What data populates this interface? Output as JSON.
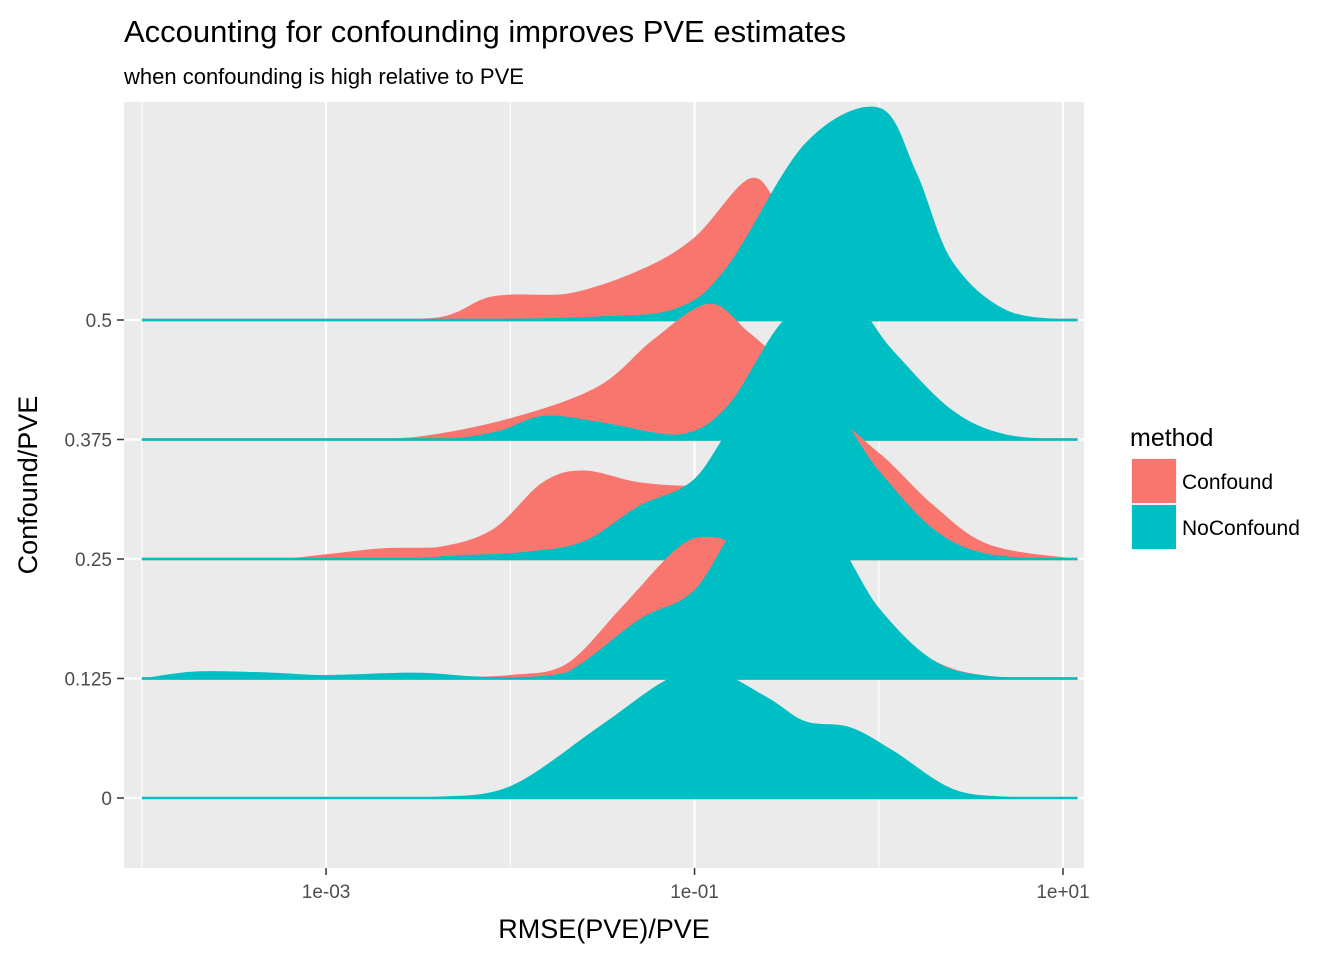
{
  "chart_data": {
    "type": "ridgeline",
    "title": "Accounting for confounding improves PVE estimates",
    "subtitle": "when confounding is high relative to PVE",
    "xlabel": "RMSE(PVE)/PVE",
    "ylabel": "Confound/PVE",
    "x_scale": "log10",
    "xlim": [
      8e-05,
      13
    ],
    "x_ticks": [
      {
        "value": 0.001,
        "label": "1e-03"
      },
      {
        "value": 0.1,
        "label": "1e-01"
      },
      {
        "value": 10,
        "label": "1e+01"
      }
    ],
    "y_ticks": [
      "0",
      "0.125",
      "0.25",
      "0.375",
      "0.5"
    ],
    "grid": true,
    "legend": {
      "title": "method",
      "position": "right",
      "entries": [
        {
          "name": "Confound",
          "color": "#F8766D"
        },
        {
          "name": "NoConfound",
          "color": "#00BFC4"
        }
      ]
    },
    "series": [
      {
        "name": "Confound",
        "color": "#F8766D",
        "ridges": [
          {
            "group": "0.125",
            "points": [
              [
                0.0001,
                0
              ],
              [
                0.0003,
                0
              ],
              [
                0.001,
                0.01
              ],
              [
                0.004,
                0.01
              ],
              [
                0.01,
                0.03
              ],
              [
                0.02,
                0.12
              ],
              [
                0.04,
                0.6
              ],
              [
                0.08,
                1.1
              ],
              [
                0.12,
                1.2
              ],
              [
                0.2,
                1.1
              ],
              [
                0.5,
                0.9
              ],
              [
                1,
                0.5
              ],
              [
                2,
                0.15
              ],
              [
                4,
                0.02
              ],
              [
                12,
                0
              ]
            ]
          },
          {
            "group": "0.25",
            "points": [
              [
                0.0001,
                0
              ],
              [
                0.0005,
                0
              ],
              [
                0.001,
                0.04
              ],
              [
                0.002,
                0.09
              ],
              [
                0.004,
                0.1
              ],
              [
                0.008,
                0.25
              ],
              [
                0.015,
                0.65
              ],
              [
                0.025,
                0.75
              ],
              [
                0.05,
                0.65
              ],
              [
                0.1,
                0.62
              ],
              [
                0.2,
                0.95
              ],
              [
                0.5,
                1.2
              ],
              [
                1,
                0.9
              ],
              [
                2,
                0.45
              ],
              [
                4,
                0.12
              ],
              [
                12,
                0
              ]
            ]
          },
          {
            "group": "0.375",
            "points": [
              [
                0.0001,
                0
              ],
              [
                0.001,
                0
              ],
              [
                0.003,
                0.02
              ],
              [
                0.01,
                0.18
              ],
              [
                0.03,
                0.45
              ],
              [
                0.06,
                0.85
              ],
              [
                0.12,
                1.15
              ],
              [
                0.2,
                0.9
              ],
              [
                0.4,
                0.5
              ],
              [
                0.8,
                0.25
              ],
              [
                1.5,
                0.1
              ],
              [
                4,
                0.02
              ],
              [
                12,
                0
              ]
            ]
          },
          {
            "group": "0.5",
            "points": [
              [
                0.0001,
                0
              ],
              [
                0.001,
                0
              ],
              [
                0.004,
                0.02
              ],
              [
                0.008,
                0.2
              ],
              [
                0.02,
                0.22
              ],
              [
                0.05,
                0.42
              ],
              [
                0.1,
                0.7
              ],
              [
                0.2,
                1.2
              ],
              [
                0.3,
                0.95
              ],
              [
                0.6,
                0.55
              ],
              [
                1,
                0.28
              ],
              [
                2,
                0.08
              ],
              [
                5,
                0.01
              ],
              [
                12,
                0
              ]
            ]
          }
        ]
      },
      {
        "name": "NoConfound",
        "color": "#00BFC4",
        "ridges": [
          {
            "group": "0",
            "points": [
              [
                0.0001,
                0
              ],
              [
                0.001,
                0
              ],
              [
                0.004,
                0.01
              ],
              [
                0.01,
                0.1
              ],
              [
                0.03,
                0.6
              ],
              [
                0.07,
                1.0
              ],
              [
                0.12,
                1.1
              ],
              [
                0.25,
                0.85
              ],
              [
                0.4,
                0.65
              ],
              [
                0.7,
                0.6
              ],
              [
                1.2,
                0.4
              ],
              [
                2.5,
                0.08
              ],
              [
                5,
                0.01
              ],
              [
                12,
                0
              ]
            ]
          },
          {
            "group": "0.125",
            "points": [
              [
                0.0001,
                0
              ],
              [
                0.0002,
                0.06
              ],
              [
                0.0005,
                0.05
              ],
              [
                0.001,
                0.03
              ],
              [
                0.003,
                0.05
              ],
              [
                0.006,
                0.02
              ],
              [
                0.01,
                0.01
              ],
              [
                0.02,
                0.05
              ],
              [
                0.05,
                0.5
              ],
              [
                0.1,
                0.75
              ],
              [
                0.2,
                1.4
              ],
              [
                0.5,
                1.3
              ],
              [
                1,
                0.6
              ],
              [
                2,
                0.15
              ],
              [
                4,
                0.02
              ],
              [
                12,
                0
              ]
            ]
          },
          {
            "group": "0.25",
            "points": [
              [
                0.0001,
                0
              ],
              [
                0.002,
                0
              ],
              [
                0.005,
                0.03
              ],
              [
                0.012,
                0.06
              ],
              [
                0.025,
                0.15
              ],
              [
                0.05,
                0.45
              ],
              [
                0.1,
                0.68
              ],
              [
                0.2,
                1.3
              ],
              [
                0.5,
                1.35
              ],
              [
                1,
                0.75
              ],
              [
                2,
                0.25
              ],
              [
                4,
                0.04
              ],
              [
                12,
                0
              ]
            ]
          },
          {
            "group": "0.375",
            "points": [
              [
                0.0001,
                0
              ],
              [
                0.003,
                0
              ],
              [
                0.008,
                0.06
              ],
              [
                0.015,
                0.2
              ],
              [
                0.03,
                0.15
              ],
              [
                0.08,
                0.04
              ],
              [
                0.15,
                0.28
              ],
              [
                0.3,
                1.0
              ],
              [
                0.6,
                1.3
              ],
              [
                1.2,
                0.75
              ],
              [
                2.5,
                0.25
              ],
              [
                5,
                0.04
              ],
              [
                12,
                0
              ]
            ]
          },
          {
            "group": "0.5",
            "points": [
              [
                0.0001,
                0
              ],
              [
                0.005,
                0
              ],
              [
                0.01,
                0.01
              ],
              [
                0.03,
                0.03
              ],
              [
                0.08,
                0.1
              ],
              [
                0.15,
                0.45
              ],
              [
                0.4,
                1.5
              ],
              [
                1,
                1.8
              ],
              [
                1.6,
                1.25
              ],
              [
                2.5,
                0.5
              ],
              [
                5,
                0.08
              ],
              [
                12,
                0
              ]
            ]
          }
        ]
      }
    ]
  }
}
